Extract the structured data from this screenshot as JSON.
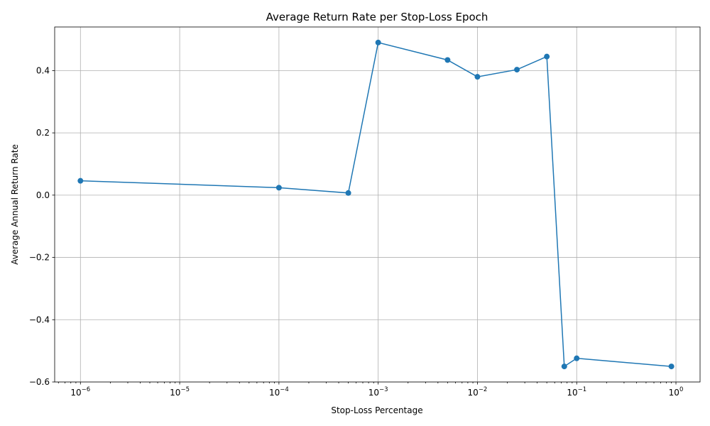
{
  "chart_data": {
    "type": "line",
    "title": "Average Return Rate per Stop-Loss Epoch",
    "xlabel": "Stop-Loss Percentage",
    "ylabel": "Average Annual Return Rate",
    "x_scale": "log",
    "xlim": [
      5.5e-07,
      1.75
    ],
    "ylim": [
      -0.6,
      0.54
    ],
    "grid": true,
    "x_ticks": [
      {
        "value": 1e-06,
        "base": "10",
        "exp": "−6"
      },
      {
        "value": 1e-05,
        "base": "10",
        "exp": "−5"
      },
      {
        "value": 0.0001,
        "base": "10",
        "exp": "−4"
      },
      {
        "value": 0.001,
        "base": "10",
        "exp": "−3"
      },
      {
        "value": 0.01,
        "base": "10",
        "exp": "−2"
      },
      {
        "value": 0.1,
        "base": "10",
        "exp": "−1"
      },
      {
        "value": 1,
        "base": "10",
        "exp": "0"
      }
    ],
    "y_ticks": [
      {
        "value": 0.4,
        "label": "0.4"
      },
      {
        "value": 0.2,
        "label": "0.2"
      },
      {
        "value": 0.0,
        "label": "0.0"
      },
      {
        "value": -0.2,
        "label": "−0.2"
      },
      {
        "value": -0.4,
        "label": "−0.4"
      },
      {
        "value": -0.6,
        "label": "−0.6"
      }
    ],
    "series": [
      {
        "color": "#1f77b4",
        "marker": "circle",
        "x": [
          1e-06,
          0.0001,
          0.0005,
          0.001,
          0.005,
          0.01,
          0.025,
          0.05,
          0.075,
          0.1,
          0.9
        ],
        "y": [
          0.046,
          0.024,
          0.007,
          0.49,
          0.434,
          0.38,
          0.403,
          0.445,
          -0.55,
          -0.524,
          -0.55
        ]
      }
    ]
  }
}
